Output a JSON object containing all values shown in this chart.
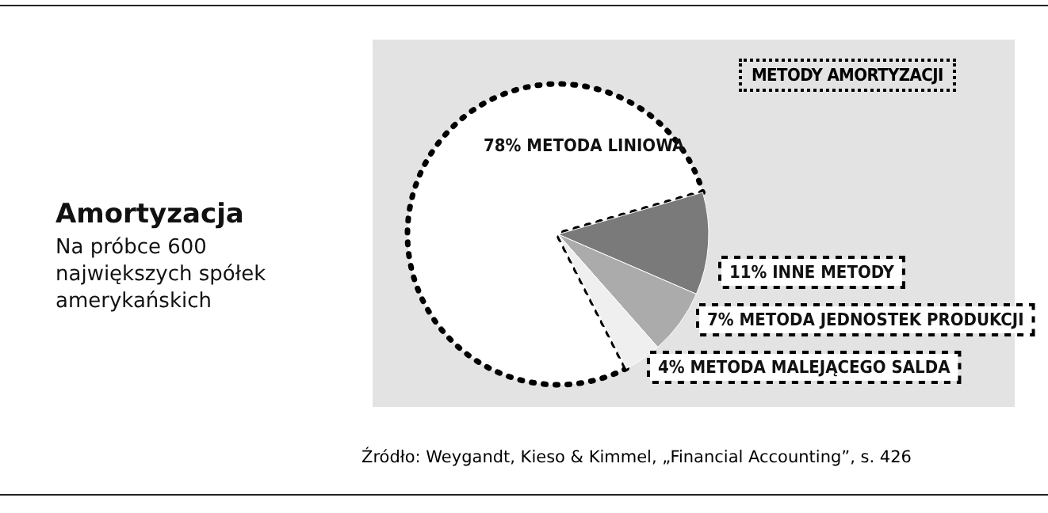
{
  "chart_data": {
    "type": "pie",
    "title": "Amortyzacja",
    "subtitle": "Na próbce 600 największych spółek amerykańskich",
    "legend_title": "METODY AMORTYZACJI",
    "categories": [
      "METODA LINIOWA",
      "INNE METODY",
      "METODA JEDNOSTEK PRODUKCJI",
      "METODA MALEJĄCEGO SALDA"
    ],
    "values": [
      78,
      11,
      7,
      4
    ],
    "colors": [
      "#ffffff",
      "#7a7a7a",
      "#ababab",
      "#efefef"
    ],
    "value_labels": [
      "78%",
      "11%",
      "7%",
      "4%"
    ],
    "annotations": [
      "Źródło: Weygandt, Kieso & Kimmel, „Financial Accounting”, s. 426"
    ]
  }
}
